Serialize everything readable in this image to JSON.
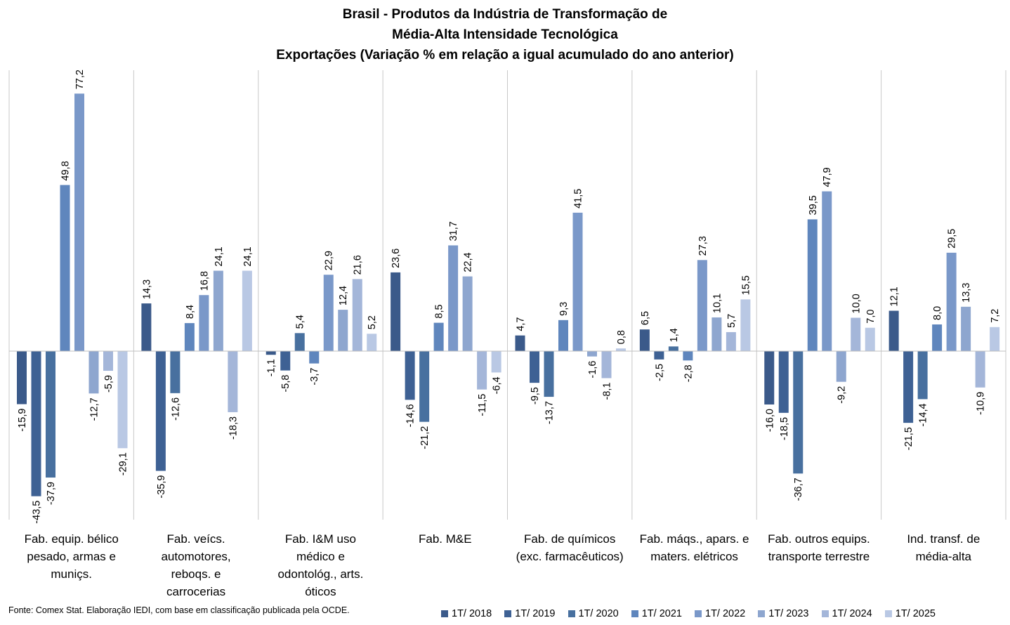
{
  "chart_data": {
    "type": "bar",
    "title_lines": [
      "Brasil - Produtos da Indústria de Transformação de",
      "Média-Alta Intensidade Tecnológica",
      "Exportações (Variação % em relação a igual acumulado do ano anterior)"
    ],
    "categories": [
      [
        "Fab. equip. bélico",
        "pesado, armas e",
        "muniçs."
      ],
      [
        "Fab. veícs.",
        "automotores,",
        "reboqs. e",
        "carrocerias"
      ],
      [
        "Fab. I&M uso",
        "médico e",
        "odontológ., arts.",
        "óticos"
      ],
      [
        "Fab. M&E"
      ],
      [
        "Fab. de químicos",
        "(exc. farmacêuticos)"
      ],
      [
        "Fab. máqs., apars. e",
        "maters. elétricos"
      ],
      [
        "Fab. outros equips.",
        "transporte terrestre"
      ],
      [
        "Ind. transf. de",
        "média-alta"
      ]
    ],
    "series": [
      {
        "name": "1T/ 2018",
        "color": "#3b5a8a",
        "values": [
          -15.9,
          14.3,
          -1.1,
          23.6,
          4.7,
          6.5,
          -16.0,
          12.1
        ],
        "labels": [
          "-15,9",
          "14,3",
          "-1,1",
          "23,6",
          "4,7",
          "6,5",
          "-16,0",
          "12,1"
        ]
      },
      {
        "name": "1T/ 2019",
        "color": "#3e6194",
        "values": [
          -43.5,
          -35.9,
          -5.8,
          -14.6,
          -9.5,
          -2.5,
          -18.5,
          -21.5
        ],
        "labels": [
          "-43,5",
          "-35,9",
          "-5,8",
          "-14,6",
          "-9,5",
          "-2,5",
          "-18,5",
          "-21,5"
        ]
      },
      {
        "name": "1T/ 2020",
        "color": "#48709f",
        "values": [
          -37.9,
          -12.6,
          5.4,
          -21.2,
          -13.7,
          1.4,
          -36.7,
          -14.4
        ],
        "labels": [
          "-37,9",
          "-12,6",
          "5,4",
          "-21,2",
          "-13,7",
          "1,4",
          "-36,7",
          "-14,4"
        ]
      },
      {
        "name": "1T/ 2021",
        "color": "#5f86bd",
        "values": [
          49.8,
          8.4,
          -3.7,
          8.5,
          9.3,
          -2.8,
          39.5,
          8.0
        ],
        "labels": [
          "49,8",
          "8,4",
          "-3,7",
          "8,5",
          "9,3",
          "-2,8",
          "39,5",
          "8,0"
        ]
      },
      {
        "name": "1T/ 2022",
        "color": "#7a98c9",
        "values": [
          77.2,
          16.8,
          22.9,
          31.7,
          41.5,
          27.3,
          47.9,
          29.5
        ],
        "labels": [
          "77,2",
          "16,8",
          "22,9",
          "31,7",
          "41,5",
          "27,3",
          "47,9",
          "29,5"
        ]
      },
      {
        "name": "1T/ 2023",
        "color": "#8ea6cf",
        "values": [
          -12.7,
          24.1,
          12.4,
          22.4,
          -1.6,
          10.1,
          -9.2,
          13.3
        ],
        "labels": [
          "-12,7",
          "24,1",
          "12,4",
          "22,4",
          "-1,6",
          "10,1",
          "-9,2",
          "13,3"
        ]
      },
      {
        "name": "1T/ 2024",
        "color": "#a4b6d9",
        "values": [
          -5.9,
          -18.3,
          21.6,
          -11.5,
          -8.1,
          5.7,
          10.0,
          -10.9
        ],
        "labels": [
          "-5,9",
          "-18,3",
          "21,6",
          "-11,5",
          "-8,1",
          "5,7",
          "10,0",
          "-10,9"
        ]
      },
      {
        "name": "1T/ 2025",
        "color": "#b9c8e4",
        "values": [
          -29.1,
          24.1,
          5.2,
          -6.4,
          0.8,
          15.5,
          7.0,
          7.2
        ],
        "labels": [
          "-29,1",
          "24,1",
          "5,2",
          "-6,4",
          "0,8",
          "15,5",
          "7,0",
          "7,2"
        ]
      }
    ],
    "grid": false,
    "legend_position": "bottom-right",
    "source": "Fonte: Comex Stat. Elaboração IEDI, com base em classificação publicada pela OCDE."
  }
}
